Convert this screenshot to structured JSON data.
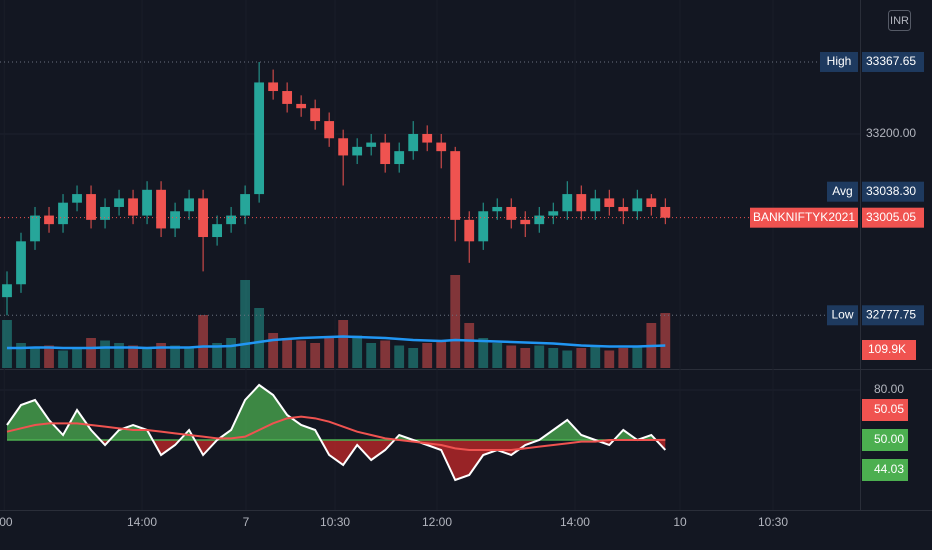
{
  "chart_data": [
    {
      "type": "candlestick",
      "currency": "INR",
      "open": [
        32820,
        32850,
        32950,
        33010,
        32990,
        33040,
        33060,
        33000,
        33030,
        33050,
        33010,
        33070,
        32980,
        33020,
        33050,
        32960,
        32990,
        33010,
        33060,
        33320,
        33300,
        33270,
        33260,
        33230,
        33190,
        33150,
        33170,
        33180,
        33130,
        33160,
        33200,
        33180,
        33160,
        33000,
        32950,
        33020,
        33030,
        33000,
        32990,
        33010,
        33020,
        33060,
        33020,
        33050,
        33030,
        33020,
        33050,
        33030
      ],
      "high": [
        32880,
        32970,
        33030,
        33030,
        33060,
        33080,
        33080,
        33050,
        33070,
        33070,
        33090,
        33090,
        33040,
        33070,
        33070,
        33010,
        33030,
        33080,
        33367.65,
        33350,
        33320,
        33290,
        33280,
        33250,
        33210,
        33190,
        33200,
        33200,
        33180,
        33230,
        33220,
        33200,
        33170,
        33020,
        33040,
        33050,
        33050,
        33020,
        33030,
        33040,
        33090,
        33080,
        33070,
        33070,
        33050,
        33070,
        33060,
        33050
      ],
      "low": [
        32777.75,
        32830,
        32930,
        32970,
        32970,
        33020,
        32980,
        32980,
        33010,
        32990,
        32990,
        32960,
        32960,
        33000,
        32880,
        32940,
        32970,
        32990,
        33040,
        33280,
        33250,
        33240,
        33210,
        33170,
        33080,
        33130,
        33150,
        33110,
        33110,
        33140,
        33160,
        33120,
        32950,
        32900,
        32930,
        33000,
        32980,
        32960,
        32970,
        32990,
        33000,
        33000,
        33000,
        33010,
        32990,
        33000,
        33010,
        32990
      ],
      "close": [
        32850,
        32950,
        33010,
        32990,
        33040,
        33060,
        33000,
        33030,
        33050,
        33010,
        33070,
        32980,
        33020,
        33050,
        32960,
        32990,
        33010,
        33060,
        33320,
        33300,
        33270,
        33260,
        33230,
        33190,
        33150,
        33170,
        33180,
        33130,
        33160,
        33200,
        33180,
        33160,
        33000,
        32950,
        33020,
        33030,
        33000,
        32990,
        33010,
        33020,
        33060,
        33020,
        33050,
        33030,
        33020,
        33050,
        33030,
        33005.05
      ],
      "up_color": "#26a69a",
      "down_color": "#ef5350",
      "ylim": [
        32655,
        33512
      ],
      "yticks": [
        {
          "value": 33200,
          "label": "33200.00"
        }
      ],
      "xlim": [
        -0.5,
        60.9
      ],
      "xticks": [
        {
          "value": -0.2,
          "label": ":00"
        },
        {
          "value": 9.64,
          "label": "14:00"
        },
        {
          "value": 17.06,
          "label": "7"
        },
        {
          "value": 23.42,
          "label": "10:30"
        },
        {
          "value": 30.7,
          "label": "12:00"
        },
        {
          "value": 40.55,
          "label": "14:00"
        },
        {
          "value": 48.05,
          "label": "10"
        },
        {
          "value": 54.69,
          "label": "10:30"
        }
      ],
      "price_lines": [
        {
          "name": "High",
          "value": 33367.65,
          "label": "33367.65",
          "color": "#1e3a5f",
          "dotted": true
        },
        {
          "name": "Avg",
          "value": 33038.3,
          "label": "33038.30",
          "color": "#1e3a5f",
          "dotted": false
        },
        {
          "name": "BANKNIFTYK2021",
          "value": 33005.05,
          "label": "33005.05",
          "color": "#f05350",
          "dotted": true
        },
        {
          "name": "Low",
          "value": 32777.75,
          "label": "32777.75",
          "color": "#1e3a5f",
          "dotted": true
        }
      ]
    },
    {
      "type": "bar",
      "values": [
        96,
        50,
        40,
        45,
        35,
        40,
        60,
        55,
        50,
        45,
        40,
        50,
        45,
        40,
        106,
        50,
        60,
        176,
        120,
        70,
        60,
        55,
        50,
        60,
        96,
        65,
        50,
        55,
        45,
        40,
        50,
        55,
        186,
        90,
        60,
        50,
        45,
        40,
        45,
        40,
        35,
        40,
        45,
        35,
        40,
        45,
        90,
        109.9
      ],
      "value_label": {
        "value": 109.9,
        "label": "109.9K"
      },
      "ylim": [
        0,
        220
      ],
      "line": {
        "color": "#2196f3",
        "values": [
          40,
          40,
          41,
          41,
          40,
          40,
          40,
          41,
          41,
          41,
          40,
          41,
          41,
          41,
          43,
          43,
          44,
          48,
          52,
          56,
          58,
          60,
          61,
          62,
          63,
          62,
          61,
          60,
          58,
          56,
          55,
          54,
          56,
          55,
          54,
          53,
          52,
          51,
          50,
          49,
          47,
          45,
          44,
          43,
          43,
          43,
          44,
          45
        ]
      }
    },
    {
      "type": "line",
      "series": [
        {
          "color": "#ffffff",
          "values": [
            59,
            71,
            74,
            62,
            53,
            68,
            56,
            47,
            56,
            59,
            56,
            41,
            47,
            56,
            41,
            50,
            56,
            74,
            83,
            77,
            65,
            59,
            56,
            41,
            35,
            47,
            38,
            44,
            53,
            50,
            47,
            44,
            26,
            29,
            41,
            44,
            41,
            47,
            50,
            56,
            62,
            53,
            50,
            47,
            56,
            50,
            53,
            44.03
          ]
        },
        {
          "color": "#ef5350",
          "values": [
            55,
            57,
            59,
            60,
            60,
            60,
            59,
            58,
            57,
            56,
            56,
            55,
            54,
            53,
            52,
            51,
            51,
            52,
            56,
            60,
            63,
            64,
            63,
            61,
            58,
            55,
            53,
            51,
            50,
            49,
            48,
            47,
            45,
            44,
            44,
            44,
            44,
            45,
            46,
            47,
            48,
            49,
            49,
            50,
            50,
            50,
            50,
            50.05
          ]
        }
      ],
      "ylim": [
        8,
        92
      ],
      "yticks": [
        {
          "value": 80,
          "label": "80.00"
        }
      ],
      "markers": [
        {
          "value": 50.05,
          "label": "50.05",
          "color": "#f05350"
        },
        {
          "value": 50,
          "label": "50.00",
          "color": "#4caf50"
        },
        {
          "value": 44.03,
          "label": "44.03",
          "color": "#4caf50"
        }
      ]
    }
  ]
}
